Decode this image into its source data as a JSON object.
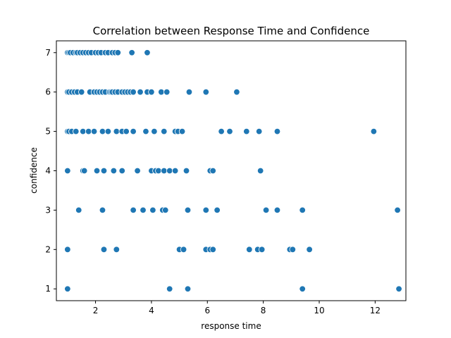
{
  "chart_data": {
    "type": "scatter",
    "title": "Correlation between Response Time and Confidence",
    "xlabel": "response time",
    "ylabel": "confidence",
    "xlim": [
      0.6,
      13.1
    ],
    "ylim": [
      0.7,
      7.3
    ],
    "xticks": [
      2,
      4,
      6,
      8,
      10,
      12
    ],
    "yticks": [
      1,
      2,
      3,
      4,
      5,
      6,
      7
    ],
    "grid": false,
    "marker_color": "#1f77b4",
    "marker_edge": "#ffffff",
    "points": [
      {
        "x": 1.0,
        "y": 7
      },
      {
        "x": 1.05,
        "y": 7
      },
      {
        "x": 1.1,
        "y": 7
      },
      {
        "x": 1.2,
        "y": 7
      },
      {
        "x": 1.3,
        "y": 7
      },
      {
        "x": 1.35,
        "y": 7
      },
      {
        "x": 1.45,
        "y": 7
      },
      {
        "x": 1.55,
        "y": 7
      },
      {
        "x": 1.65,
        "y": 7
      },
      {
        "x": 1.75,
        "y": 7
      },
      {
        "x": 1.85,
        "y": 7
      },
      {
        "x": 2.0,
        "y": 7
      },
      {
        "x": 2.1,
        "y": 7
      },
      {
        "x": 2.2,
        "y": 7
      },
      {
        "x": 2.35,
        "y": 7
      },
      {
        "x": 2.45,
        "y": 7
      },
      {
        "x": 2.6,
        "y": 7
      },
      {
        "x": 2.7,
        "y": 7
      },
      {
        "x": 2.8,
        "y": 7
      },
      {
        "x": 3.3,
        "y": 7
      },
      {
        "x": 3.85,
        "y": 7
      },
      {
        "x": 1.0,
        "y": 6
      },
      {
        "x": 1.05,
        "y": 6
      },
      {
        "x": 1.15,
        "y": 6
      },
      {
        "x": 1.25,
        "y": 6
      },
      {
        "x": 1.35,
        "y": 6
      },
      {
        "x": 1.5,
        "y": 6
      },
      {
        "x": 1.8,
        "y": 6
      },
      {
        "x": 1.95,
        "y": 6
      },
      {
        "x": 2.05,
        "y": 6
      },
      {
        "x": 2.15,
        "y": 6
      },
      {
        "x": 2.25,
        "y": 6
      },
      {
        "x": 2.35,
        "y": 6
      },
      {
        "x": 2.5,
        "y": 6
      },
      {
        "x": 2.55,
        "y": 6
      },
      {
        "x": 2.6,
        "y": 6
      },
      {
        "x": 2.7,
        "y": 6
      },
      {
        "x": 2.8,
        "y": 6
      },
      {
        "x": 2.95,
        "y": 6
      },
      {
        "x": 3.05,
        "y": 6
      },
      {
        "x": 3.15,
        "y": 6
      },
      {
        "x": 3.25,
        "y": 6
      },
      {
        "x": 3.35,
        "y": 6
      },
      {
        "x": 3.6,
        "y": 6
      },
      {
        "x": 3.85,
        "y": 6
      },
      {
        "x": 4.0,
        "y": 6
      },
      {
        "x": 4.35,
        "y": 6
      },
      {
        "x": 4.55,
        "y": 6
      },
      {
        "x": 5.35,
        "y": 6
      },
      {
        "x": 5.95,
        "y": 6
      },
      {
        "x": 7.05,
        "y": 6
      },
      {
        "x": 1.0,
        "y": 5
      },
      {
        "x": 1.05,
        "y": 5
      },
      {
        "x": 1.15,
        "y": 5
      },
      {
        "x": 1.3,
        "y": 5
      },
      {
        "x": 1.55,
        "y": 5
      },
      {
        "x": 1.75,
        "y": 5
      },
      {
        "x": 1.95,
        "y": 5
      },
      {
        "x": 2.25,
        "y": 5
      },
      {
        "x": 2.45,
        "y": 5
      },
      {
        "x": 2.75,
        "y": 5
      },
      {
        "x": 2.95,
        "y": 5
      },
      {
        "x": 3.1,
        "y": 5
      },
      {
        "x": 3.35,
        "y": 5
      },
      {
        "x": 3.8,
        "y": 5
      },
      {
        "x": 4.1,
        "y": 5
      },
      {
        "x": 4.45,
        "y": 5
      },
      {
        "x": 4.85,
        "y": 5
      },
      {
        "x": 4.95,
        "y": 5
      },
      {
        "x": 5.1,
        "y": 5
      },
      {
        "x": 6.5,
        "y": 5
      },
      {
        "x": 6.8,
        "y": 5
      },
      {
        "x": 7.4,
        "y": 5
      },
      {
        "x": 7.85,
        "y": 5
      },
      {
        "x": 8.5,
        "y": 5
      },
      {
        "x": 11.95,
        "y": 5
      },
      {
        "x": 1.0,
        "y": 4
      },
      {
        "x": 1.55,
        "y": 4
      },
      {
        "x": 1.6,
        "y": 4
      },
      {
        "x": 2.05,
        "y": 4
      },
      {
        "x": 2.3,
        "y": 4
      },
      {
        "x": 2.65,
        "y": 4
      },
      {
        "x": 2.95,
        "y": 4
      },
      {
        "x": 3.5,
        "y": 4
      },
      {
        "x": 4.0,
        "y": 4
      },
      {
        "x": 4.15,
        "y": 4
      },
      {
        "x": 4.25,
        "y": 4
      },
      {
        "x": 4.45,
        "y": 4
      },
      {
        "x": 4.65,
        "y": 4
      },
      {
        "x": 4.85,
        "y": 4
      },
      {
        "x": 5.25,
        "y": 4
      },
      {
        "x": 6.1,
        "y": 4
      },
      {
        "x": 6.2,
        "y": 4
      },
      {
        "x": 7.9,
        "y": 4
      },
      {
        "x": 1.4,
        "y": 3
      },
      {
        "x": 2.25,
        "y": 3
      },
      {
        "x": 3.35,
        "y": 3
      },
      {
        "x": 3.7,
        "y": 3
      },
      {
        "x": 4.05,
        "y": 3
      },
      {
        "x": 4.4,
        "y": 3
      },
      {
        "x": 4.5,
        "y": 3
      },
      {
        "x": 5.3,
        "y": 3
      },
      {
        "x": 5.95,
        "y": 3
      },
      {
        "x": 6.35,
        "y": 3
      },
      {
        "x": 8.1,
        "y": 3
      },
      {
        "x": 8.5,
        "y": 3
      },
      {
        "x": 9.4,
        "y": 3
      },
      {
        "x": 12.8,
        "y": 3
      },
      {
        "x": 1.0,
        "y": 2
      },
      {
        "x": 2.3,
        "y": 2
      },
      {
        "x": 2.75,
        "y": 2
      },
      {
        "x": 5.0,
        "y": 2
      },
      {
        "x": 5.15,
        "y": 2
      },
      {
        "x": 5.95,
        "y": 2
      },
      {
        "x": 6.1,
        "y": 2
      },
      {
        "x": 6.2,
        "y": 2
      },
      {
        "x": 7.5,
        "y": 2
      },
      {
        "x": 7.8,
        "y": 2
      },
      {
        "x": 7.95,
        "y": 2
      },
      {
        "x": 8.95,
        "y": 2
      },
      {
        "x": 9.05,
        "y": 2
      },
      {
        "x": 9.65,
        "y": 2
      },
      {
        "x": 1.0,
        "y": 1
      },
      {
        "x": 4.65,
        "y": 1
      },
      {
        "x": 5.3,
        "y": 1
      },
      {
        "x": 9.4,
        "y": 1
      },
      {
        "x": 12.85,
        "y": 1
      }
    ]
  }
}
